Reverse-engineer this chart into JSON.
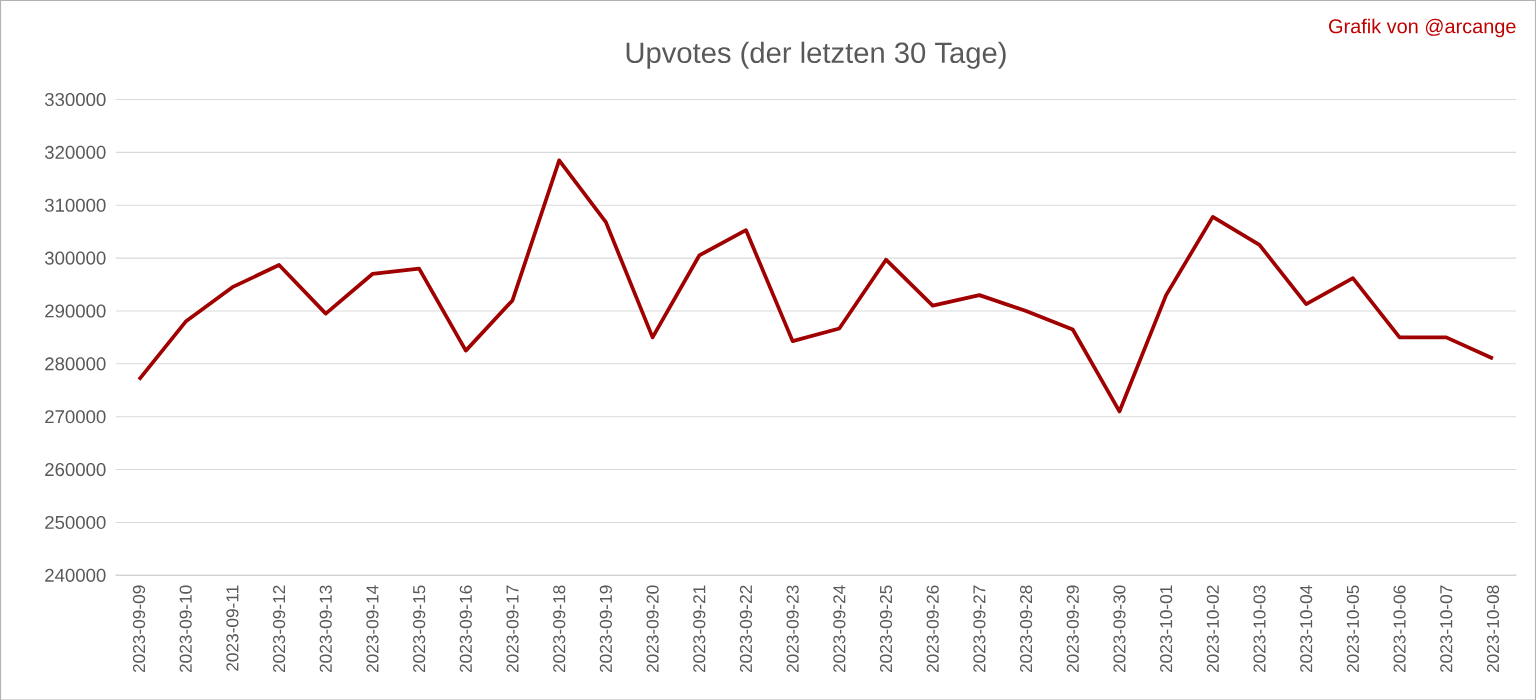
{
  "chart_data": {
    "type": "line",
    "title": "Upvotes (der letzten 30 Tage)",
    "annotations": [
      "Grafik von @arcange"
    ],
    "categories": [
      "2023-09-09",
      "2023-09-10",
      "2023-09-11",
      "2023-09-12",
      "2023-09-13",
      "2023-09-14",
      "2023-09-15",
      "2023-09-16",
      "2023-09-17",
      "2023-09-18",
      "2023-09-19",
      "2023-09-20",
      "2023-09-21",
      "2023-09-22",
      "2023-09-23",
      "2023-09-24",
      "2023-09-25",
      "2023-09-26",
      "2023-09-27",
      "2023-09-28",
      "2023-09-29",
      "2023-09-30",
      "2023-10-01",
      "2023-10-02",
      "2023-10-03",
      "2023-10-04",
      "2023-10-05",
      "2023-10-06",
      "2023-10-07",
      "2023-10-08"
    ],
    "series": [
      {
        "color": "#a00000",
        "values": [
          277000,
          288000,
          294500,
          298700,
          289500,
          297000,
          298000,
          282500,
          292000,
          318500,
          306800,
          285000,
          300500,
          305300,
          284300,
          286700,
          299700,
          291000,
          293000,
          290000,
          286500,
          271000,
          293000,
          307800,
          302500,
          291300,
          296200,
          285000,
          285000,
          281000
        ]
      }
    ],
    "ylim": [
      240000,
      330000
    ],
    "yticks": [
      240000,
      250000,
      260000,
      270000,
      280000,
      290000,
      300000,
      310000,
      320000,
      330000
    ],
    "grid": "y",
    "marker": "none",
    "line_style": "solid"
  }
}
